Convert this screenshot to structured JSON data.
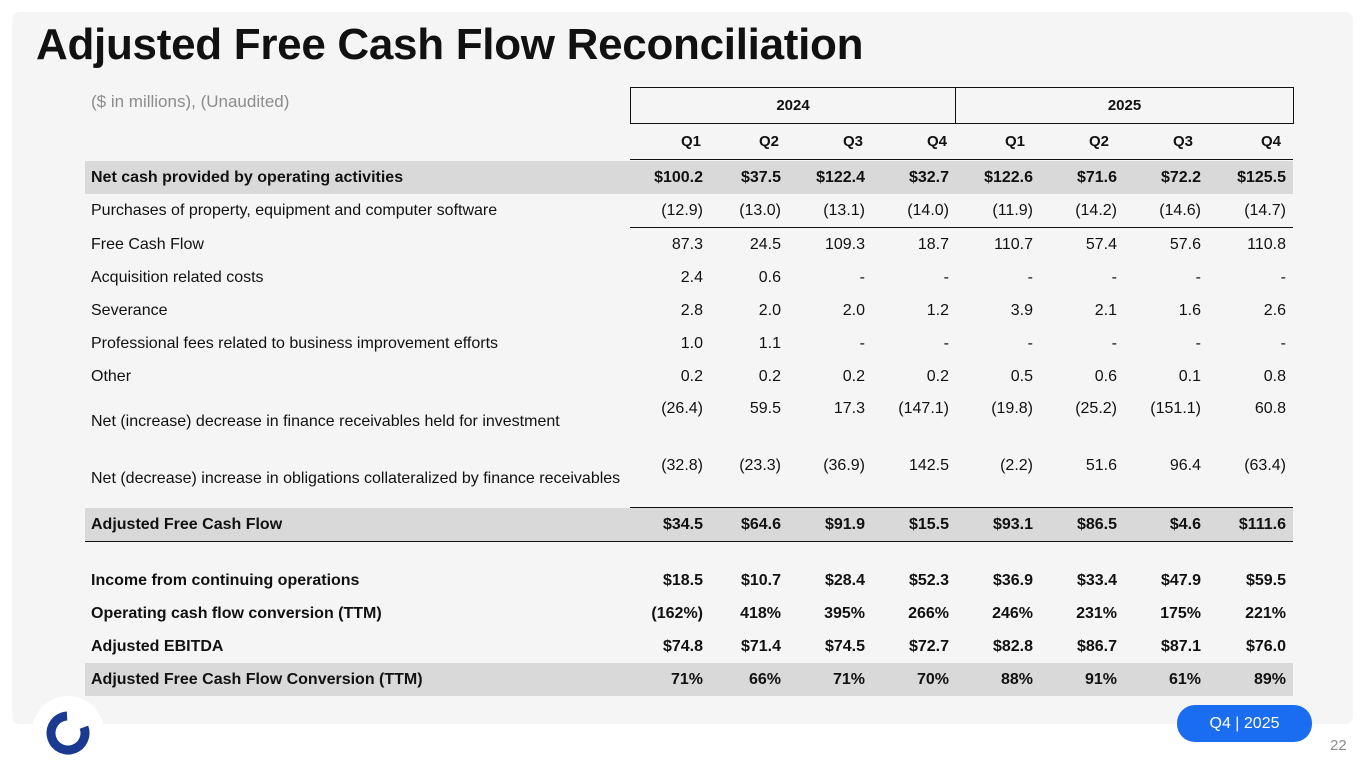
{
  "title": "Adjusted Free Cash Flow Reconciliation",
  "units_note": "($ in millions), (Unaudited)",
  "years": [
    "2024",
    "2025"
  ],
  "quarters": [
    "Q1",
    "Q2",
    "Q3",
    "Q4",
    "Q1",
    "Q2",
    "Q3",
    "Q4"
  ],
  "rows": [
    {
      "label": "Net cash provided by operating activities",
      "values": [
        "$100.2",
        "$37.5",
        "$122.4",
        "$32.7",
        "$122.6",
        "$71.6",
        "$72.2",
        "$125.5"
      ]
    },
    {
      "label": "Purchases of property, equipment and computer software",
      "values": [
        "(12.9)",
        "(13.0)",
        "(13.1)",
        "(14.0)",
        "(11.9)",
        "(14.2)",
        "(14.6)",
        "(14.7)"
      ]
    },
    {
      "label": "Free Cash Flow",
      "values": [
        "87.3",
        "24.5",
        "109.3",
        "18.7",
        "110.7",
        "57.4",
        "57.6",
        "110.8"
      ]
    },
    {
      "label": "Acquisition related costs",
      "values": [
        "2.4",
        "0.6",
        "-",
        "-",
        "-",
        "-",
        "-",
        "-"
      ]
    },
    {
      "label": "Severance",
      "values": [
        "2.8",
        "2.0",
        "2.0",
        "1.2",
        "3.9",
        "2.1",
        "1.6",
        "2.6"
      ]
    },
    {
      "label": "Professional fees related to business improvement efforts",
      "values": [
        "1.0",
        "1.1",
        "-",
        "-",
        "-",
        "-",
        "-",
        "-"
      ]
    },
    {
      "label": "Other",
      "values": [
        "0.2",
        "0.2",
        "0.2",
        "0.2",
        "0.5",
        "0.6",
        "0.1",
        "0.8"
      ]
    },
    {
      "label": "Net (increase) decrease in finance receivables held for investment",
      "values": [
        "(26.4)",
        "59.5",
        "17.3",
        "(147.1)",
        "(19.8)",
        "(25.2)",
        "(151.1)",
        "60.8"
      ]
    },
    {
      "label": "Net (decrease) increase in obligations collateralized by finance receivables",
      "values": [
        "(32.8)",
        "(23.3)",
        "(36.9)",
        "142.5",
        "(2.2)",
        "51.6",
        "96.4",
        "(63.4)"
      ]
    },
    {
      "label": "Adjusted Free Cash Flow",
      "values": [
        "$34.5",
        "$64.6",
        "$91.9",
        "$15.5",
        "$93.1",
        "$86.5",
        "$4.6",
        "$111.6"
      ]
    },
    {
      "label": "Income from continuing operations",
      "values": [
        "$18.5",
        "$10.7",
        "$28.4",
        "$52.3",
        "$36.9",
        "$33.4",
        "$47.9",
        "$59.5"
      ]
    },
    {
      "label": "Operating cash flow conversion (TTM)",
      "values": [
        "(162%)",
        "418%",
        "395%",
        "266%",
        "246%",
        "231%",
        "175%",
        "221%"
      ]
    },
    {
      "label": "Adjusted EBITDA",
      "values": [
        "$74.8",
        "$71.4",
        "$74.5",
        "$72.7",
        "$82.8",
        "$86.7",
        "$87.1",
        "$76.0"
      ]
    },
    {
      "label": "Adjusted Free Cash Flow Conversion (TTM)",
      "values": [
        "71%",
        "66%",
        "71%",
        "70%",
        "88%",
        "91%",
        "61%",
        "89%"
      ]
    }
  ],
  "footer": {
    "period_badge": "Q4 | 2025",
    "page_number": "22"
  },
  "brand": {
    "logo_icon": "ring-logo-icon",
    "logo_color": "#1a3a8f",
    "accent_color": "#1a6cf0",
    "row_shade_color": "#d9d9d9"
  }
}
